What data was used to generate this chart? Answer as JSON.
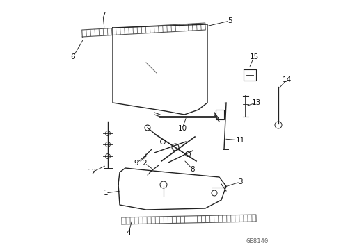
{
  "background_color": "#ffffff",
  "line_color": "#222222",
  "diagram_id": "GE8140",
  "figsize": [
    4.9,
    3.6
  ],
  "dpi": 100
}
